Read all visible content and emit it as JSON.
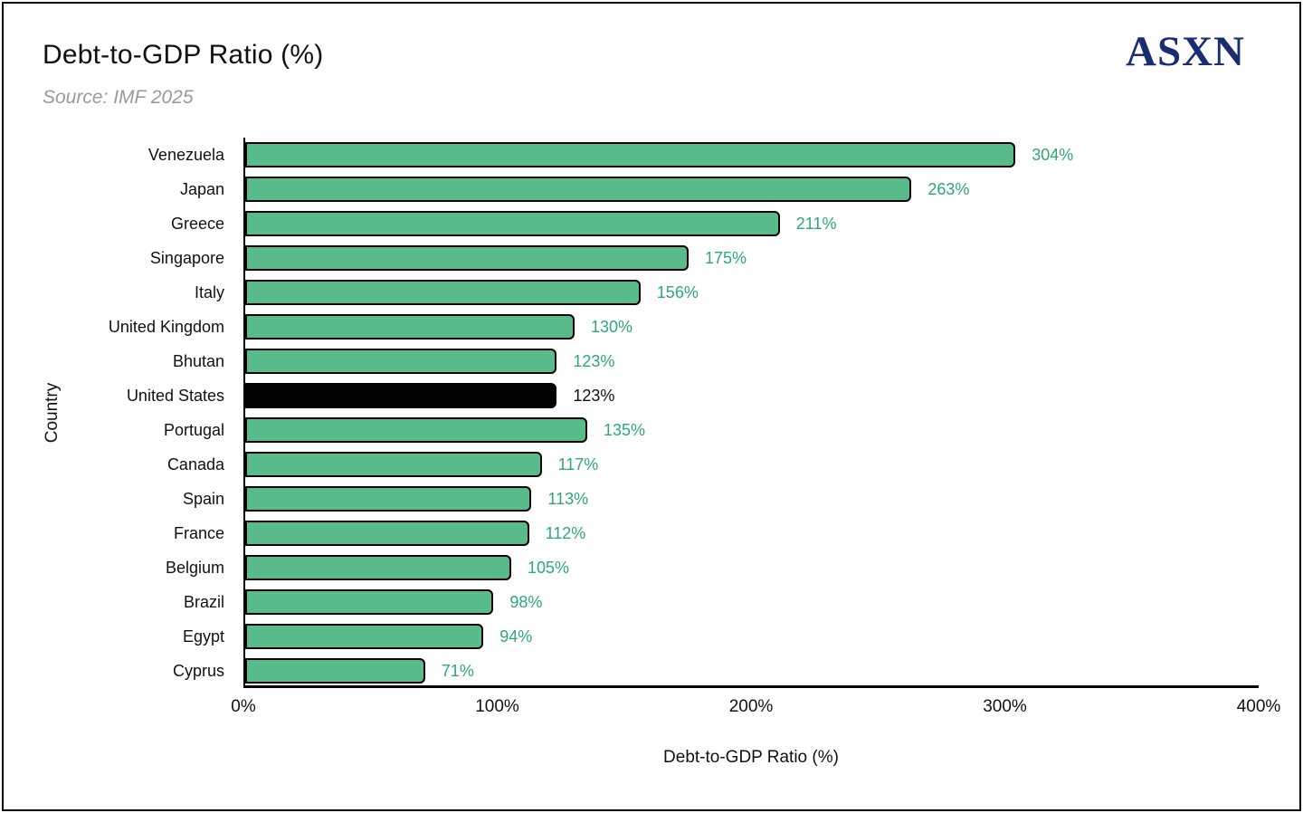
{
  "header": {
    "title": "Debt-to-GDP Ratio (%)",
    "subtitle": "Source: IMF 2025",
    "logo": "ASXN",
    "logo_color": "#1b2d72"
  },
  "chart_data": {
    "type": "bar",
    "orientation": "horizontal",
    "title": "Debt-to-GDP Ratio (%)",
    "subtitle": "Source: IMF 2025",
    "xlabel": "Debt-to-GDP Ratio (%)",
    "ylabel": "Country",
    "xlim": [
      0,
      400
    ],
    "grid": "off",
    "legend": "none",
    "x_ticks": [
      {
        "value": 0,
        "label": "0%"
      },
      {
        "value": 100,
        "label": "100%"
      },
      {
        "value": 200,
        "label": "200%"
      },
      {
        "value": 300,
        "label": "300%"
      },
      {
        "value": 400,
        "label": "400%"
      }
    ],
    "bars": [
      {
        "country": "Venezuela",
        "value": 304,
        "label": "304%",
        "highlight": false
      },
      {
        "country": "Japan",
        "value": 263,
        "label": "263%",
        "highlight": false
      },
      {
        "country": "Greece",
        "value": 211,
        "label": "211%",
        "highlight": false
      },
      {
        "country": "Singapore",
        "value": 175,
        "label": "175%",
        "highlight": false
      },
      {
        "country": "Italy",
        "value": 156,
        "label": "156%",
        "highlight": false
      },
      {
        "country": "United Kingdom",
        "value": 130,
        "label": "130%",
        "highlight": false
      },
      {
        "country": "Bhutan",
        "value": 123,
        "label": "123%",
        "highlight": false
      },
      {
        "country": "United States",
        "value": 123,
        "label": "123%",
        "highlight": true
      },
      {
        "country": "Portugal",
        "value": 135,
        "label": "135%",
        "highlight": false
      },
      {
        "country": "Canada",
        "value": 117,
        "label": "117%",
        "highlight": false
      },
      {
        "country": "Spain",
        "value": 113,
        "label": "113%",
        "highlight": false
      },
      {
        "country": "France",
        "value": 112,
        "label": "112%",
        "highlight": false
      },
      {
        "country": "Belgium",
        "value": 105,
        "label": "105%",
        "highlight": false
      },
      {
        "country": "Brazil",
        "value": 98,
        "label": "98%",
        "highlight": false
      },
      {
        "country": "Egypt",
        "value": 94,
        "label": "94%",
        "highlight": false
      },
      {
        "country": "Cyprus",
        "value": 71,
        "label": "71%",
        "highlight": false
      }
    ],
    "colors": {
      "bar_fill": "#57bb8a",
      "bar_border": "#000000",
      "value_label": "#2fa874",
      "highlight_fill": "#000000",
      "highlight_value_label": "#111111",
      "axis": "#000000",
      "subtitle_text": "#9a9a9a"
    }
  }
}
